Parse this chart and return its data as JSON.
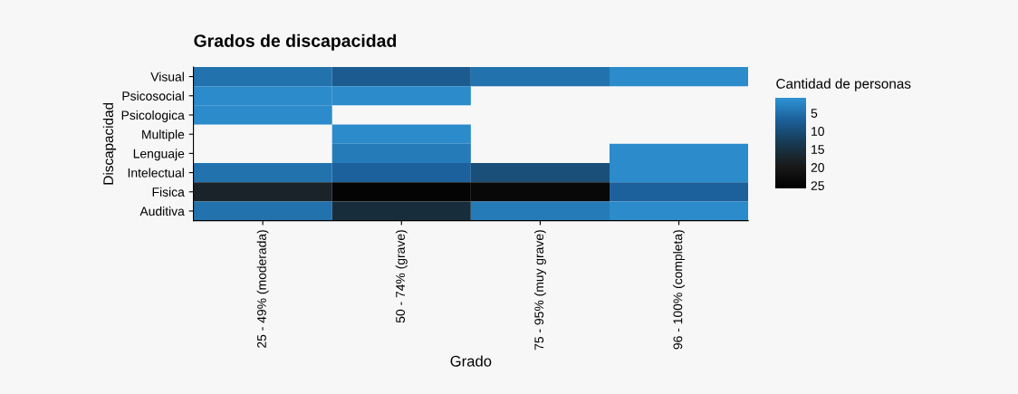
{
  "chart_data": {
    "type": "heatmap",
    "title": "Grados de discapacidad",
    "xlabel": "Grado",
    "ylabel": "Discapacidad",
    "clabel": "Cantidad de personas",
    "categories": [
      "25 - 49% (moderada)",
      "50 - 74% (grave)",
      "75 - 95% (muy grave)",
      "96 - 100% (completa)"
    ],
    "y_categories": [
      "Visual",
      "Psicosocial",
      "Psicologica",
      "Multiple",
      "Lenguaje",
      "Intelectual",
      "Fisica",
      "Auditiva"
    ],
    "cells": [
      [
        5,
        8,
        5,
        2
      ],
      [
        2,
        2,
        null,
        null
      ],
      [
        2,
        null,
        null,
        null
      ],
      [
        null,
        2,
        null,
        null
      ],
      [
        null,
        4,
        null,
        2
      ],
      [
        5,
        7,
        10,
        2
      ],
      [
        18,
        25,
        24,
        7
      ],
      [
        5,
        16,
        4,
        2
      ]
    ],
    "clim": [
      1,
      26
    ],
    "cticks": [
      5,
      10,
      15,
      20,
      25
    ]
  }
}
